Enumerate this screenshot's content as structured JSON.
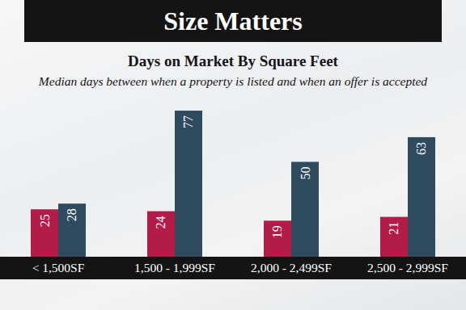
{
  "chart_data": {
    "type": "bar",
    "title": "Size Matters",
    "subtitle": "Days on Market By Square Feet",
    "caption": "Median days between when a property is listed and when an offer is accepted",
    "categories": [
      "< 1,500SF",
      "1,500 - 1,999SF",
      "2,000 - 2,499SF",
      "2,500 - 2,999SF"
    ],
    "series": [
      {
        "color": "#b31b48",
        "values": [
          25,
          24,
          19,
          21
        ]
      },
      {
        "color": "#2f4b5f",
        "values": [
          28,
          77,
          50,
          63
        ]
      }
    ],
    "ylim": [
      0,
      80
    ],
    "data_labels": true,
    "tick_labels": "x",
    "grid": false
  }
}
